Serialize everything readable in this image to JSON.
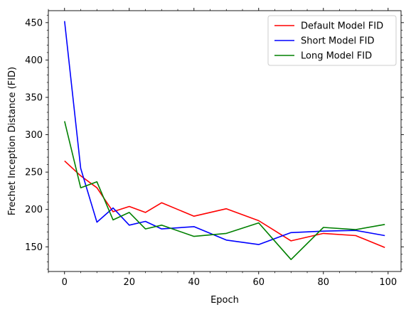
{
  "chart_data": {
    "type": "line",
    "title": "",
    "xlabel": "Epoch",
    "ylabel": "Frechet Inception Distance (FID)",
    "xlim": [
      -5,
      104
    ],
    "ylim": [
      117,
      466
    ],
    "xticks": [
      0,
      20,
      40,
      60,
      80,
      100
    ],
    "yticks": [
      150,
      200,
      250,
      300,
      350,
      400,
      450
    ],
    "legend_position": "top-right",
    "grid": false,
    "series": [
      {
        "name": "Default Model FID",
        "color": "#ff0000",
        "x": [
          0,
          5,
          10,
          15,
          20,
          25,
          30,
          40,
          50,
          60,
          70,
          80,
          90,
          99
        ],
        "y": [
          265,
          245,
          229,
          197,
          204,
          196,
          209,
          191,
          201,
          185,
          158,
          168,
          165,
          149
        ]
      },
      {
        "name": "Short Model FID",
        "color": "#0000ff",
        "x": [
          0,
          5,
          10,
          15,
          20,
          25,
          30,
          40,
          50,
          60,
          70,
          80,
          90,
          99
        ],
        "y": [
          452,
          255,
          183,
          202,
          179,
          184,
          174,
          177,
          159,
          153,
          169,
          171,
          172,
          165
        ]
      },
      {
        "name": "Long Model FID",
        "color": "#008000",
        "x": [
          0,
          5,
          10,
          15,
          20,
          25,
          30,
          40,
          50,
          60,
          70,
          80,
          90,
          99
        ],
        "y": [
          318,
          229,
          237,
          186,
          196,
          174,
          179,
          164,
          168,
          182,
          133,
          176,
          173,
          180
        ]
      }
    ]
  }
}
